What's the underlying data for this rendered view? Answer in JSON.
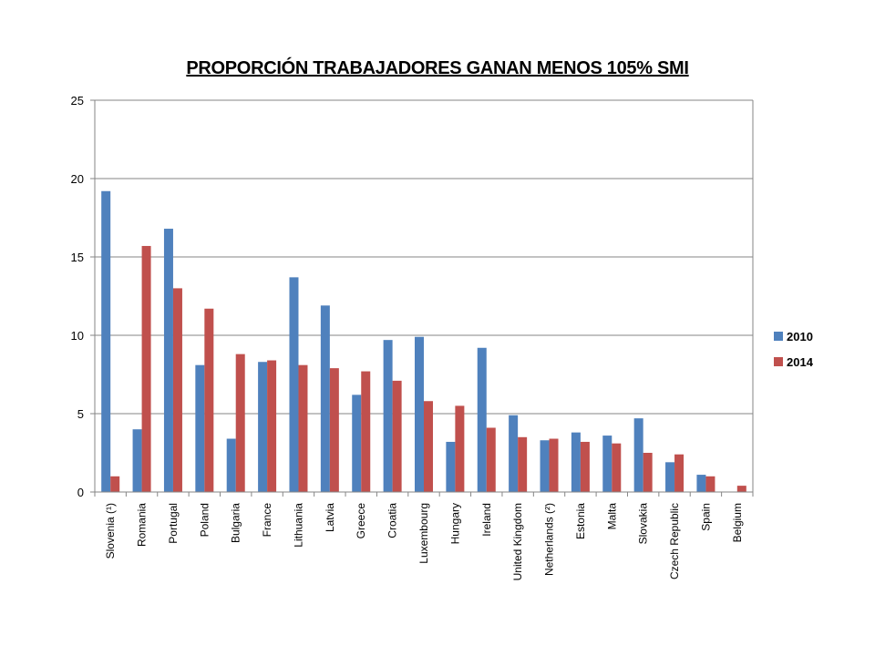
{
  "chart_data": {
    "type": "bar",
    "title": "PROPORCIÓN TRABAJADORES GANAN MENOS 105% SMI",
    "xlabel": "",
    "ylabel": "",
    "ylim": [
      0,
      25
    ],
    "yticks": [
      0,
      5,
      10,
      15,
      20,
      25
    ],
    "grid": true,
    "legend_position": "right",
    "categories": [
      "Slovenia (¹)",
      "Romania",
      "Portugal",
      "Poland",
      "Bulgaria",
      "France",
      "Lithuania",
      "Latvia",
      "Greece",
      "Croatia",
      "Luxembourg",
      "Hungary",
      "Ireland",
      "United Kingdom",
      "Netherlands (²)",
      "Estonia",
      "Malta",
      "Slovakia",
      "Czech Republic",
      "Spain",
      "Belgium"
    ],
    "series": [
      {
        "name": "2010",
        "color": "#4F81BD",
        "values": [
          19.2,
          4.0,
          16.8,
          8.1,
          3.4,
          8.3,
          13.7,
          11.9,
          6.2,
          9.7,
          9.9,
          3.2,
          9.2,
          4.9,
          3.3,
          3.8,
          3.6,
          4.7,
          1.9,
          1.1,
          null
        ]
      },
      {
        "name": "2014",
        "color": "#C0504D",
        "values": [
          1.0,
          15.7,
          13.0,
          11.7,
          8.8,
          8.4,
          8.1,
          7.9,
          7.7,
          7.1,
          5.8,
          5.5,
          4.1,
          3.5,
          3.4,
          3.2,
          3.1,
          2.5,
          2.4,
          1.0,
          0.4
        ]
      }
    ]
  }
}
